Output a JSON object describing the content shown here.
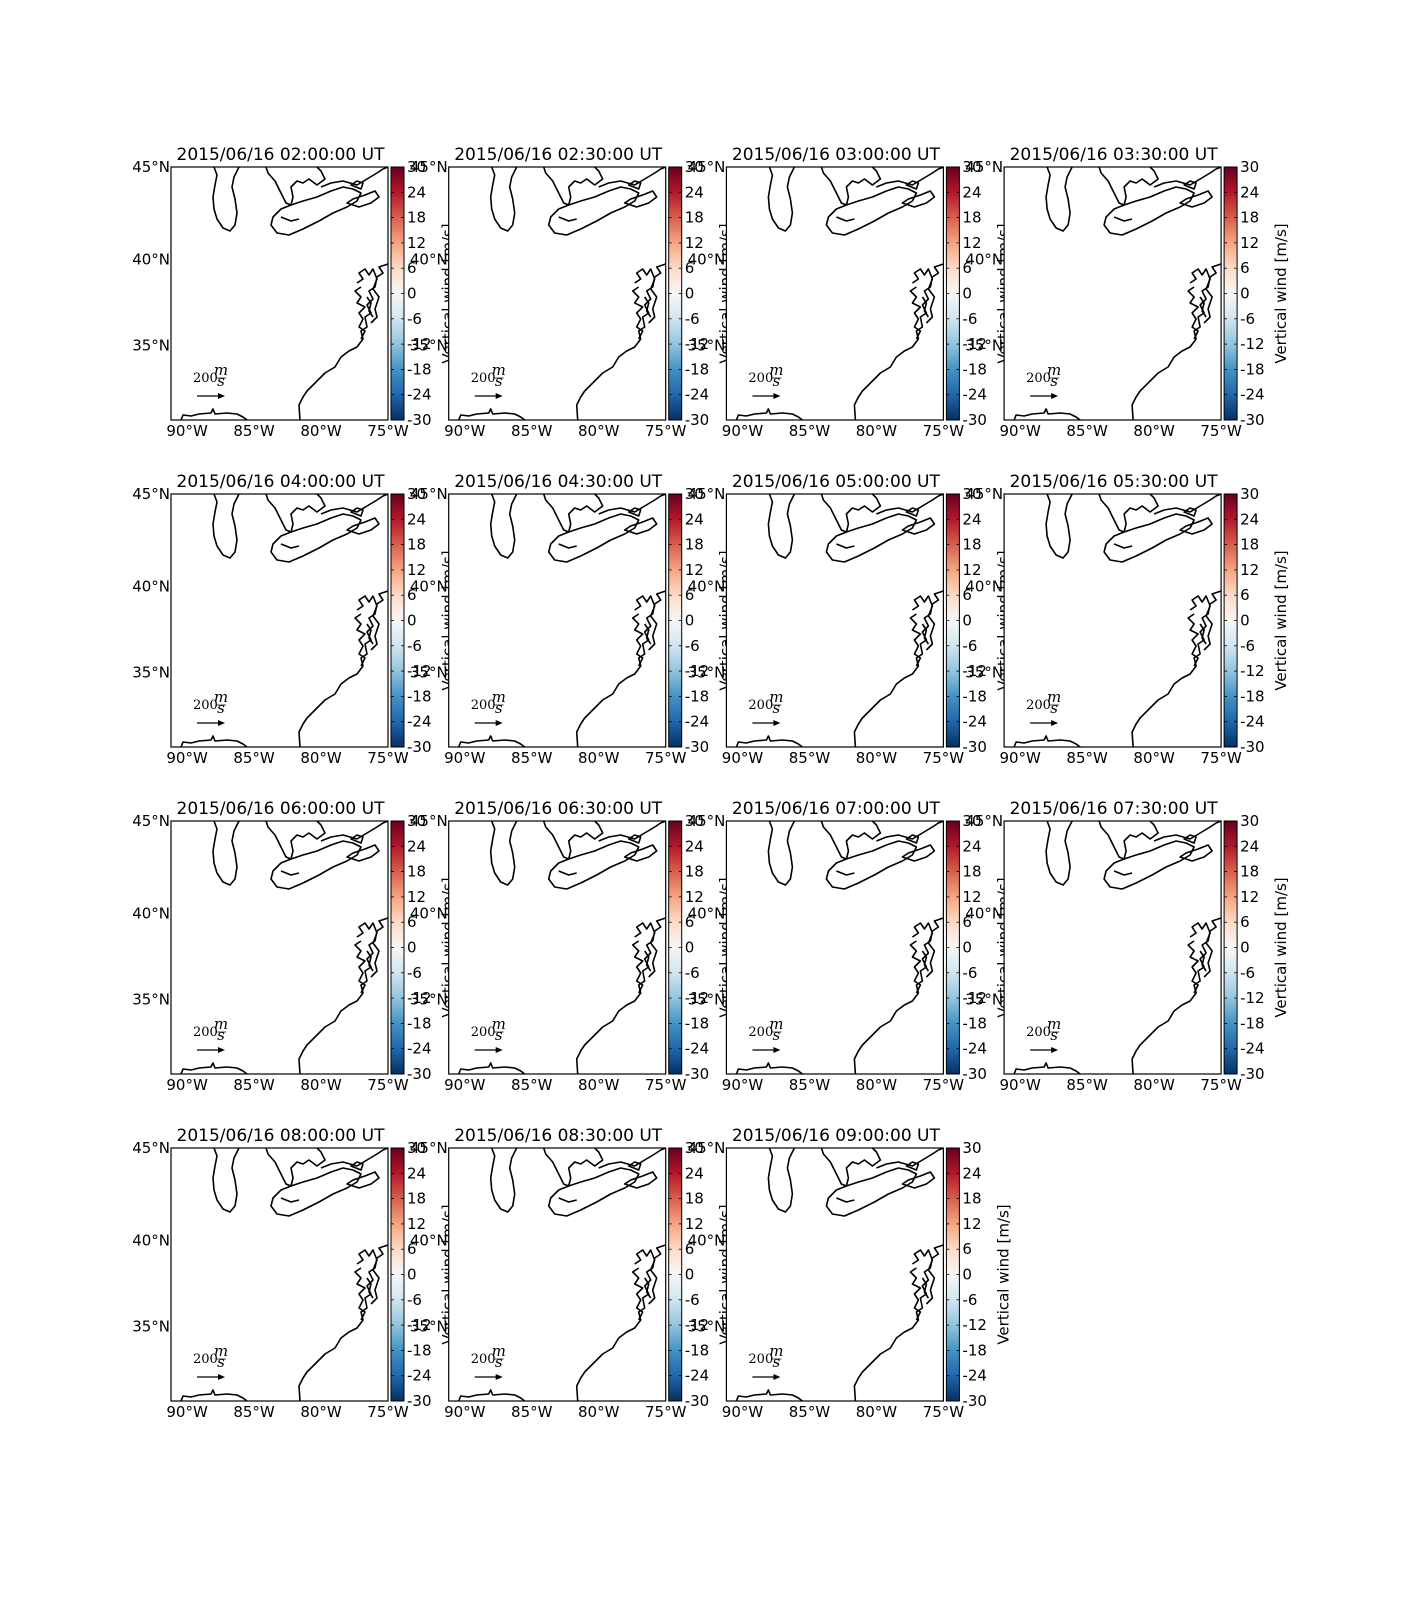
{
  "panels": [
    {
      "title": "2015/06/16 02:00:00 UT"
    },
    {
      "title": "2015/06/16 02:30:00 UT"
    },
    {
      "title": "2015/06/16 03:00:00 UT"
    },
    {
      "title": "2015/06/16 03:30:00 UT"
    },
    {
      "title": "2015/06/16 04:00:00 UT"
    },
    {
      "title": "2015/06/16 04:30:00 UT"
    },
    {
      "title": "2015/06/16 05:00:00 UT"
    },
    {
      "title": "2015/06/16 05:30:00 UT"
    },
    {
      "title": "2015/06/16 06:00:00 UT"
    },
    {
      "title": "2015/06/16 06:30:00 UT"
    },
    {
      "title": "2015/06/16 07:00:00 UT"
    },
    {
      "title": "2015/06/16 07:30:00 UT"
    },
    {
      "title": "2015/06/16 08:00:00 UT"
    },
    {
      "title": "2015/06/16 08:30:00 UT"
    },
    {
      "title": "2015/06/16 09:00:00 UT"
    }
  ],
  "map": {
    "xlim": [
      -91.2,
      -75
    ],
    "ylim": [
      30.4,
      45
    ],
    "xticks": [
      {
        "value": -90,
        "label": "90°W"
      },
      {
        "value": -85,
        "label": "85°W"
      },
      {
        "value": -80,
        "label": "80°W"
      },
      {
        "value": -75,
        "label": "75°W"
      }
    ],
    "yticks": [
      {
        "value": 45,
        "label": "45°N"
      },
      {
        "value": 40,
        "label": "40°N"
      },
      {
        "value": 35,
        "label": "35°N"
      }
    ]
  },
  "colorbar": {
    "label": "Vertical wind [m/s]",
    "lim": [
      -30,
      30
    ],
    "ticks": [
      30,
      24,
      18,
      12,
      6,
      0,
      -6,
      -12,
      -18,
      -24,
      -30
    ]
  },
  "quiver_key": {
    "value": "200",
    "numerator": "m",
    "denominator": "s"
  }
}
